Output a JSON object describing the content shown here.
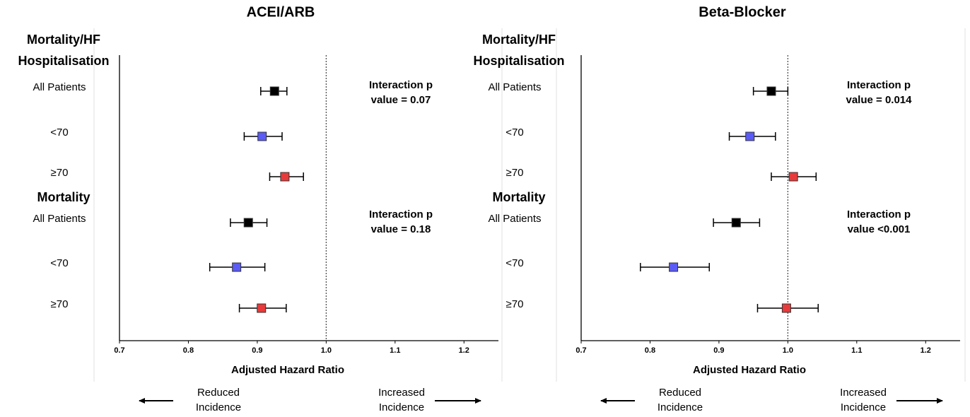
{
  "chart_data": [
    {
      "type": "forest",
      "title": "ACEI/ARB",
      "xlabel": "Adjusted Hazard Ratio",
      "xlim": [
        0.7,
        1.25
      ],
      "xticks": [
        0.7,
        0.8,
        0.9,
        {
          "value": 1,
          "label": "1.0"
        },
        1.1,
        1.2
      ],
      "reference": 1,
      "left_arrow_label": [
        "Reduced",
        "Incidence"
      ],
      "right_arrow_label": [
        "Increased",
        "Incidence"
      ],
      "groups": [
        {
          "label": [
            "Mortality/HF",
            "Hospitalisation"
          ],
          "annotation": [
            "Interaction p",
            "value = 0.07"
          ],
          "rows": [
            {
              "label": "All Patients",
              "value": 0.925,
              "lower": 0.905,
              "upper": 0.943,
              "color": "#000000"
            },
            {
              "label": "<70",
              "value": 0.907,
              "lower": 0.881,
              "upper": 0.936,
              "color": "#5b5bf5"
            },
            {
              "label": "≥70",
              "value": 0.94,
              "lower": 0.918,
              "upper": 0.967,
              "color": "#e83a3a"
            }
          ]
        },
        {
          "label": [
            "Mortality"
          ],
          "annotation": [
            "Interaction p",
            "value = 0.18"
          ],
          "rows": [
            {
              "label": "All Patients",
              "value": 0.887,
              "lower": 0.861,
              "upper": 0.914,
              "color": "#000000"
            },
            {
              "label": "<70",
              "value": 0.87,
              "lower": 0.831,
              "upper": 0.911,
              "color": "#5b5bf5"
            },
            {
              "label": "≥70",
              "value": 0.906,
              "lower": 0.874,
              "upper": 0.942,
              "color": "#e83a3a"
            }
          ]
        }
      ]
    },
    {
      "type": "forest",
      "title": "Beta-Blocker",
      "xlabel": "Adjusted Hazard Ratio",
      "xlim": [
        0.7,
        1.25
      ],
      "xticks": [
        0.7,
        0.8,
        0.9,
        {
          "value": 1,
          "label": "1.0"
        },
        1.1,
        1.2
      ],
      "reference": 1,
      "left_arrow_label": [
        "Reduced",
        "Incidence"
      ],
      "right_arrow_label": [
        "Increased",
        "Incidence"
      ],
      "groups": [
        {
          "label": [
            "Mortality/HF",
            "Hospitalisation"
          ],
          "annotation": [
            "Interaction p",
            "value = 0.014"
          ],
          "rows": [
            {
              "label": "All Patients",
              "value": 0.976,
              "lower": 0.95,
              "upper": 1.0,
              "color": "#000000"
            },
            {
              "label": "<70",
              "value": 0.945,
              "lower": 0.915,
              "upper": 0.982,
              "color": "#5b5bf5"
            },
            {
              "label": "≥70",
              "value": 1.008,
              "lower": 0.976,
              "upper": 1.041,
              "color": "#e83a3a"
            }
          ]
        },
        {
          "label": [
            "Mortality"
          ],
          "annotation": [
            "Interaction p",
            "value <0.001"
          ],
          "rows": [
            {
              "label": "All Patients",
              "value": 0.925,
              "lower": 0.892,
              "upper": 0.959,
              "color": "#000000"
            },
            {
              "label": "<70",
              "value": 0.834,
              "lower": 0.786,
              "upper": 0.886,
              "color": "#5b5bf5"
            },
            {
              "label": "≥70",
              "value": 0.998,
              "lower": 0.956,
              "upper": 1.044,
              "color": "#e83a3a"
            }
          ]
        }
      ]
    }
  ]
}
